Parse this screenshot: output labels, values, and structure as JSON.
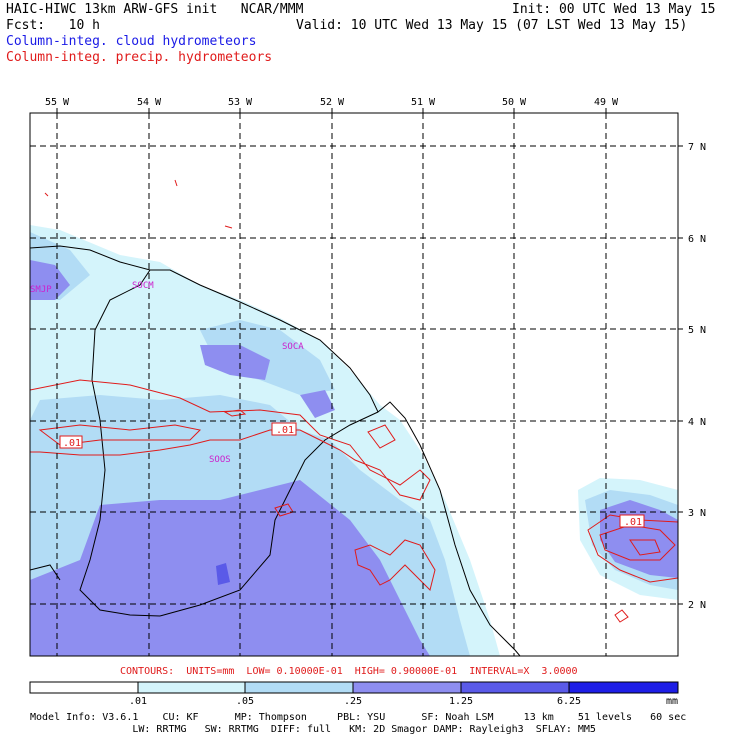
{
  "header": {
    "title_left": "HAIC-HIWC 13km ARW-GFS init   NCAR/MMM",
    "init": "Init: 00 UTC Wed 13 May 15",
    "fcst": "Fcst:   10 h",
    "valid": "Valid: 10 UTC Wed 13 May 15 (07 LST Wed 13 May 15)",
    "field_cloud": "Column-integ. cloud hydrometeors",
    "field_precip": "Column-integ. precip. hydrometeors"
  },
  "map": {
    "lon_labels": [
      "55 W",
      "54 W",
      "53 W",
      "52 W",
      "51 W",
      "50 W",
      "49 W"
    ],
    "lat_labels": [
      "7 N",
      "6 N",
      "5 N",
      "4 N",
      "3 N",
      "2 N"
    ],
    "stations": [
      "SMJP",
      "SOCM",
      "SOCA",
      "SOOS"
    ],
    "contour_labels": [
      ".01",
      ".01",
      ".01"
    ]
  },
  "contours_line": "CONTOURS:  UNITS=mm  LOW= 0.10000E-01  HIGH= 0.90000E-01  INTERVAL=X  3.0000",
  "colorbar": {
    "colors": [
      "#ffffff",
      "#d4f4fb",
      "#b2dcf5",
      "#8e8ef0",
      "#5a5ae8",
      "#1e1ee6"
    ],
    "ticks": [
      ".01",
      ".05",
      ".25",
      "1.25",
      "6.25"
    ],
    "units": "mm"
  },
  "model_info": {
    "line1": "Model Info: V3.6.1    CU: KF      MP: Thompson     PBL: YSU      SF: Noah LSM     13 km    51 levels   60 sec",
    "line2": "                 LW: RRTMG   SW: RRTMG  DIFF: full   KM: 2D Smagor DAMP: Rayleigh3  SFLAY: MM5"
  }
}
